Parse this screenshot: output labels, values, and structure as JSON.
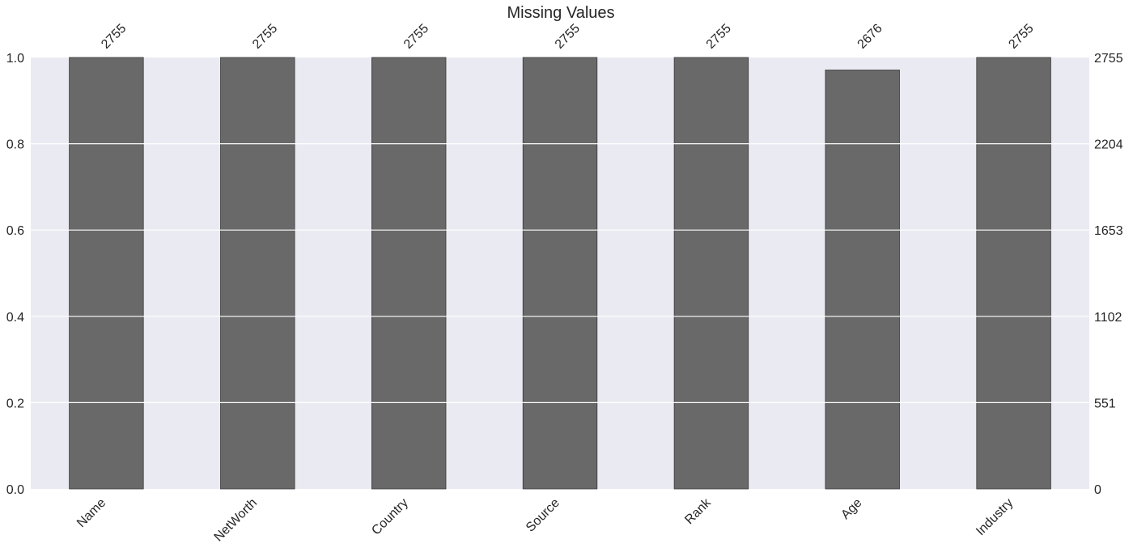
{
  "chart_data": {
    "type": "bar",
    "title": "Missing Values",
    "categories": [
      "Name",
      "NetWorth",
      "Country",
      "Source",
      "Rank",
      "Age",
      "Industry"
    ],
    "values": [
      1.0,
      1.0,
      1.0,
      1.0,
      1.0,
      0.971,
      1.0
    ],
    "counts": [
      "2755",
      "2755",
      "2755",
      "2755",
      "2755",
      "2676",
      "2755"
    ],
    "ylim": [
      0,
      1
    ],
    "left_ticks": [
      "0.0",
      "0.2",
      "0.4",
      "0.6",
      "0.8",
      "1.0"
    ],
    "right_ticks": [
      "0",
      "551",
      "1102",
      "1653",
      "2204",
      "2755"
    ],
    "grid": true,
    "colors": {
      "background": "#eaeaf2",
      "bar": "#696969",
      "grid": "#ffffff"
    }
  }
}
